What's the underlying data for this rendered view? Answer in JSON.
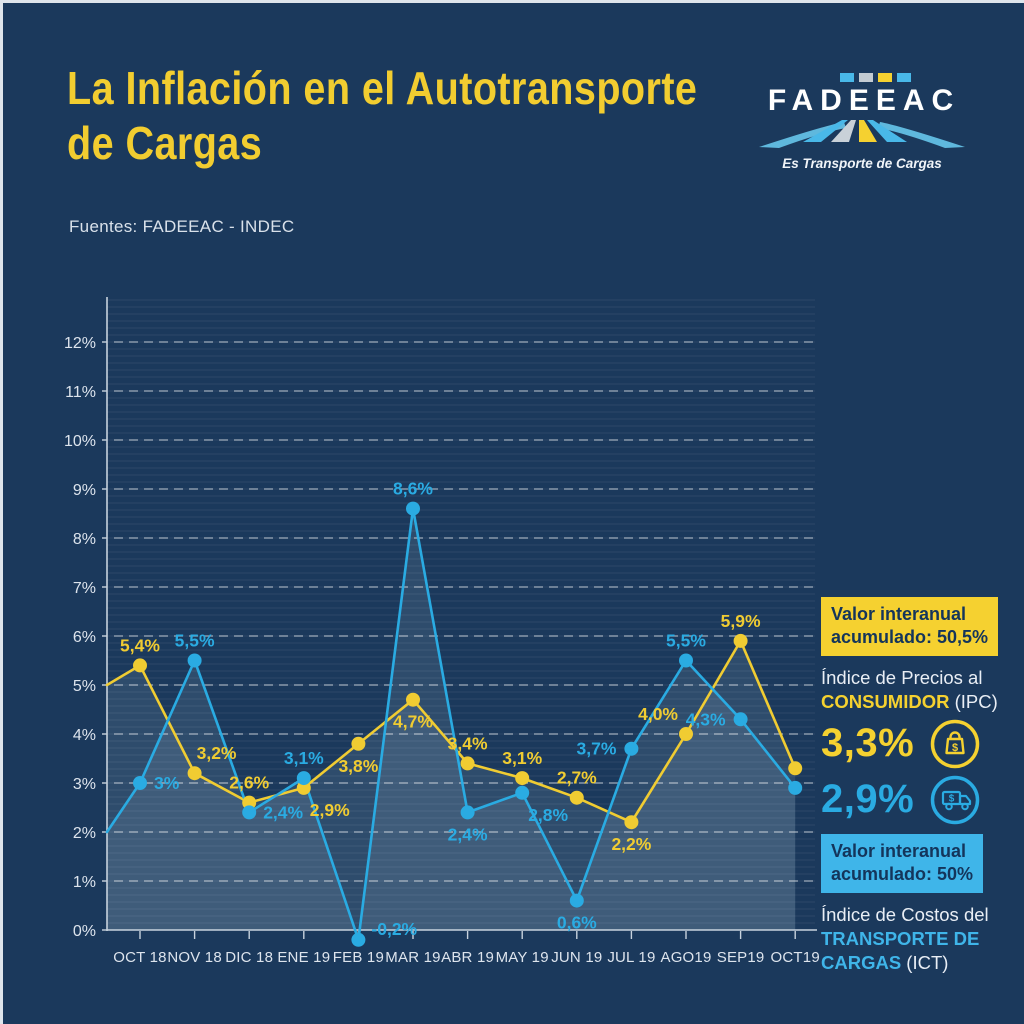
{
  "header": {
    "title_line1": "La Inflación en el Autotransporte",
    "title_line2": "de Cargas",
    "source": "Fuentes: FADEEAC - INDEC"
  },
  "logo": {
    "name": "FADEEAC",
    "tagline": "Es Transporte de Cargas"
  },
  "colors": {
    "background": "#1b395c",
    "yellow": "#f5d130",
    "cyan": "#2aabe2",
    "badge_cyan": "#3fb5e9",
    "light_text": "#e9eef5",
    "navy_text": "#14355b"
  },
  "chart_data": {
    "type": "line",
    "title": "La Inflación en el Autotransporte de Cargas",
    "categories": [
      "OCT 18",
      "NOV 18",
      "DIC 18",
      "ENE 19",
      "FEB 19",
      "MAR 19",
      "ABR 19",
      "MAY 19",
      "JUN 19",
      "JUL 19",
      "AGO19",
      "SEP19",
      "OCT19"
    ],
    "ylim": [
      0,
      12
    ],
    "y_ticks": [
      "0%",
      "1%",
      "2%",
      "3%",
      "4%",
      "5%",
      "6%",
      "7%",
      "8%",
      "9%",
      "10%",
      "11%",
      "12%"
    ],
    "grid": "dashed-horizontal",
    "legend": "none",
    "area_fill": "rgba(190,214,232,0.12)",
    "series": [
      {
        "name": "Índice de Precios al Consumidor (IPC)",
        "color": "#f0cc32",
        "values": [
          5.4,
          3.2,
          2.6,
          2.9,
          3.8,
          4.7,
          3.4,
          3.1,
          2.7,
          2.2,
          4.0,
          5.9,
          3.3
        ],
        "labels": [
          "5,4%",
          "3,2%",
          "2,6%",
          "2,9%",
          "3,8%",
          "4,7%",
          "3,4%",
          "3,1%",
          "2,7%",
          "2,2%",
          "4,0%",
          "5,9%",
          ""
        ],
        "label_pos": [
          "above",
          "above-right",
          "above",
          "below-right",
          "below",
          "below",
          "above",
          "above",
          "above",
          "below",
          "above-left",
          "above",
          "above"
        ],
        "edge_start": 5.0
      },
      {
        "name": "Índice de Costos del Transporte de Cargas (ICT)",
        "color": "#2aabe2",
        "values": [
          3.0,
          5.5,
          2.4,
          3.1,
          -0.2,
          8.6,
          2.4,
          2.8,
          0.6,
          3.7,
          5.5,
          4.3,
          2.9
        ],
        "labels": [
          "3%",
          "5,5%",
          "2,4%",
          "3,1%",
          "-0,2%",
          "8,6%",
          "2,4%",
          "2,8%",
          "0,6%",
          "3,7%",
          "5,5%",
          "4,3%",
          ""
        ],
        "label_pos": [
          "right",
          "above",
          "right",
          "above",
          "right-up",
          "above",
          "below",
          "below-right",
          "below",
          "left",
          "above",
          "left",
          "above"
        ],
        "edge_start": 2.0
      }
    ]
  },
  "panel": {
    "ipc_badge_line1": "Valor interanual",
    "ipc_badge_line2": "acumulado: 50,5%",
    "ipc_desc_line1": "Índice de Precios al",
    "ipc_desc_strong": "CONSUMIDOR",
    "ipc_desc_suffix": " (IPC)",
    "ipc_value": "3,3%",
    "ict_value": "2,9%",
    "ict_badge_line1": "Valor interanual",
    "ict_badge_line2": "acumulado: 50%",
    "ict_desc_line1": "Índice de Costos del",
    "ict_desc_strong1": "TRANSPORTE DE",
    "ict_desc_strong2": "CARGAS",
    "ict_desc_suffix": " (ICT)"
  }
}
